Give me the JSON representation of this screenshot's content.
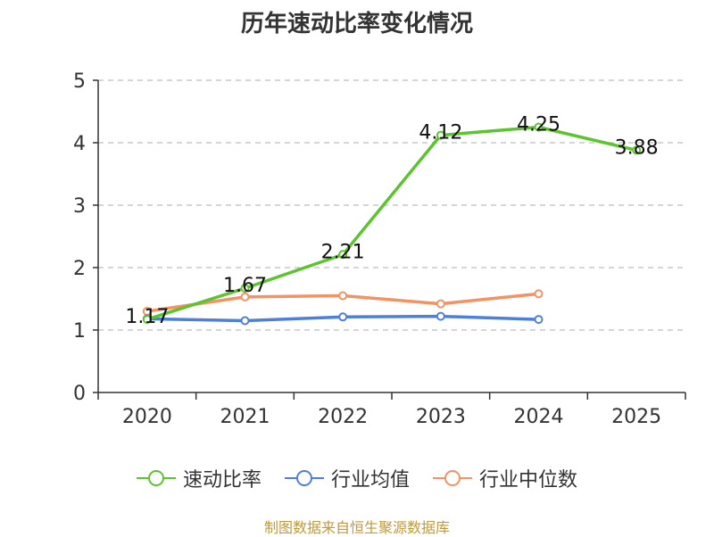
{
  "chart_data": {
    "type": "line",
    "title": "历年速动比率变化情况",
    "categories": [
      "2020",
      "2021",
      "2022",
      "2023",
      "2024",
      "2025"
    ],
    "ylim": [
      0,
      5
    ],
    "yticks": [
      "0",
      "1",
      "2",
      "3",
      "4",
      "5"
    ],
    "grid": true,
    "legend_position": "bottom",
    "series": [
      {
        "name": "速动比率",
        "color": "#5cc42f",
        "values": [
          1.17,
          1.67,
          2.21,
          4.12,
          4.25,
          3.88
        ],
        "labels": [
          "1.17",
          "1.67",
          "2.21",
          "4.12",
          "4.25",
          "3.88"
        ]
      },
      {
        "name": "行业均值",
        "color": "#4f7fdb",
        "values": [
          1.18,
          1.15,
          1.21,
          1.22,
          1.17,
          null
        ]
      },
      {
        "name": "行业中位数",
        "color": "#f39262",
        "values": [
          1.3,
          1.53,
          1.55,
          1.42,
          1.58,
          null
        ]
      }
    ]
  },
  "footer": {
    "source": "制图数据来自恒生聚源数据库"
  }
}
